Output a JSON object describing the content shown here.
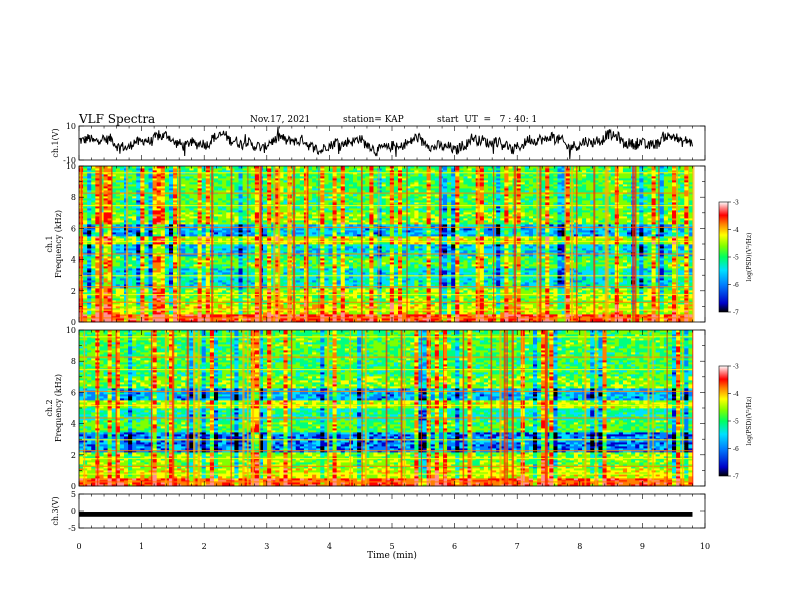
{
  "header": {
    "title": "VLF Spectra",
    "date": "Nov.17, 2021",
    "station": "station= KAP",
    "start": "start  UT  =   7 : 40: 1"
  },
  "chart_data": [
    {
      "type": "line",
      "panel": "ch1-waveform",
      "ylabel": "ch.1(V)",
      "ylim": [
        -10,
        10
      ],
      "yticks": [
        "10",
        "-10"
      ],
      "xlim": [
        0,
        10
      ],
      "color": "#000000",
      "description_values": "noisy signal between about -8 and 8 V"
    },
    {
      "type": "heatmap",
      "panel": "ch1-spectrogram",
      "ylabel": "ch.1",
      "ylabel2": "Frequency  (kHz)",
      "ylim": [
        0,
        10
      ],
      "yticks": [
        "0",
        "2",
        "4",
        "6",
        "8",
        "10"
      ],
      "xlim": [
        0,
        10
      ],
      "colorbar": {
        "label": "log(PSD)(V²/Hz)",
        "range": [
          -7,
          -3
        ],
        "ticks": [
          "-3",
          "-4",
          "-5",
          "-6",
          "-7"
        ]
      }
    },
    {
      "type": "heatmap",
      "panel": "ch2-spectrogram",
      "ylabel": "ch.2",
      "ylabel2": "Frequency  (kHz)",
      "ylim": [
        0,
        10
      ],
      "yticks": [
        "0",
        "2",
        "4",
        "6",
        "8",
        "10"
      ],
      "xlim": [
        0,
        10
      ],
      "colorbar": {
        "label": "log(PSD)(V²/Hz)",
        "range": [
          -7,
          -3
        ],
        "ticks": [
          "-3",
          "-4",
          "-5",
          "-6",
          "-7"
        ]
      }
    },
    {
      "type": "line",
      "panel": "ch3-waveform",
      "ylabel": "ch.3(V)",
      "ylim": [
        -5,
        5
      ],
      "yticks": [
        "5",
        "0",
        "-5"
      ],
      "xlim": [
        0,
        10
      ],
      "xlabel": "Time  (min)",
      "xticks": [
        "0",
        "1",
        "2",
        "3",
        "4",
        "5",
        "6",
        "7",
        "8",
        "9",
        "10"
      ],
      "color": "#000000",
      "values_note": "flat band near -1 V"
    }
  ],
  "colors": {
    "colormap": [
      "#000000",
      "#0000c8",
      "#0080ff",
      "#00e0ff",
      "#00ff80",
      "#80ff00",
      "#ffff00",
      "#ff8000",
      "#ff0000",
      "#ff9090",
      "#ffffff"
    ]
  }
}
